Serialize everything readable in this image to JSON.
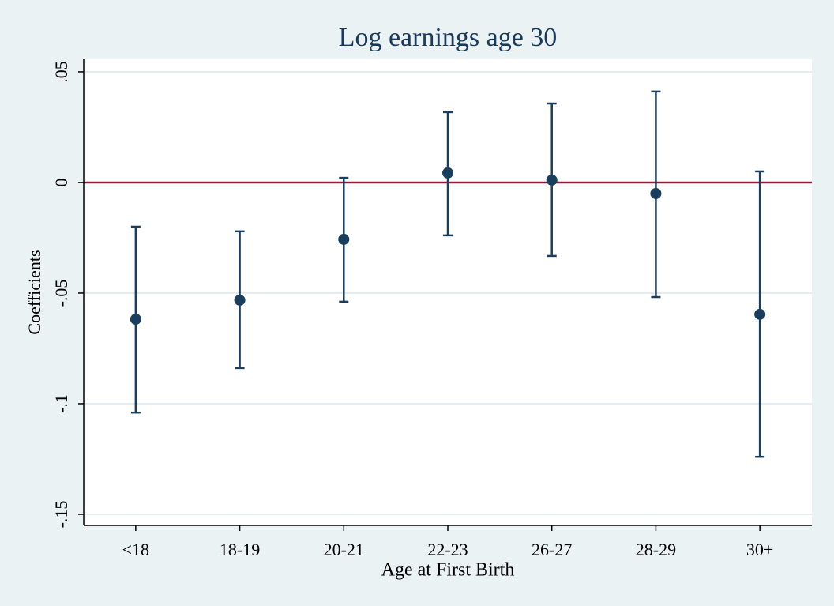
{
  "chart_data": {
    "type": "errorbar",
    "title": "Log earnings age 30",
    "xlabel": "Age at First Birth",
    "ylabel": "Coefficients",
    "categories": [
      "<18",
      "18-19",
      "20-21",
      "22-23",
      "26-27",
      "28-29",
      "30+"
    ],
    "values": [
      -0.0618,
      -0.0532,
      -0.0257,
      0.0043,
      0.0011,
      -0.005,
      -0.0596
    ],
    "ci_low": [
      -0.104,
      -0.0839,
      -0.0539,
      -0.0239,
      -0.0332,
      -0.0518,
      -0.124
    ],
    "ci_high": [
      -0.02,
      -0.0221,
      0.0021,
      0.0318,
      0.0357,
      0.0411,
      0.005
    ],
    "color": "#1a3e5e",
    "ylim": [
      -0.155,
      0.0557
    ],
    "yticks": [
      {
        "value": 0.05,
        "label": ".05"
      },
      0,
      {
        "value": -0.05,
        "label": "-.05"
      },
      {
        "value": -0.1,
        "label": "-.1"
      },
      {
        "value": -0.15,
        "label": "-.15"
      }
    ],
    "grid": true,
    "reference_line": {
      "value": 0,
      "color": "#a5153b"
    }
  }
}
